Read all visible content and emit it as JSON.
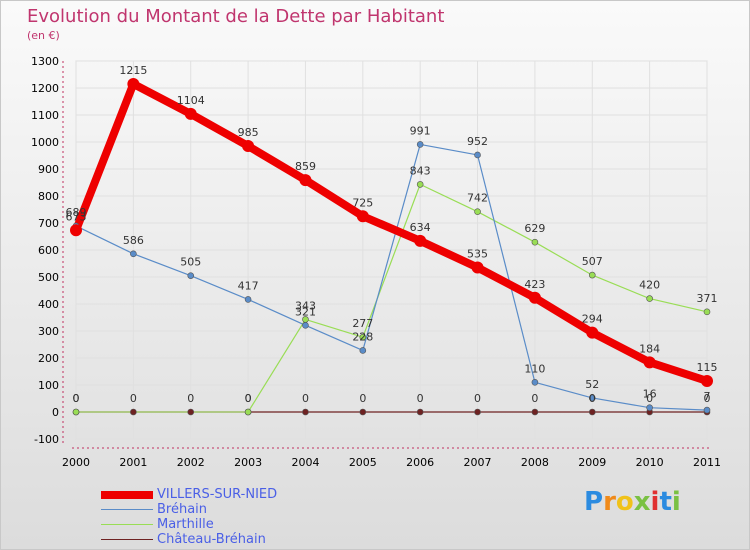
{
  "chart_data": {
    "type": "line",
    "title": "Evolution du Montant de la Dette par Habitant",
    "subtitle": "(en €)",
    "categories": [
      "2000",
      "2001",
      "2002",
      "2003",
      "2004",
      "2005",
      "2006",
      "2007",
      "2008",
      "2009",
      "2010",
      "2011"
    ],
    "ylim": [
      -100,
      1300
    ],
    "yticks": [
      -100,
      0,
      100,
      200,
      300,
      400,
      500,
      600,
      700,
      800,
      900,
      1000,
      1100,
      1200,
      1300
    ],
    "grid": true,
    "series": [
      {
        "name": "Château-Bréhain",
        "color": "#6e2222",
        "values": [
          0,
          0,
          0,
          0,
          0,
          0,
          0,
          0,
          0,
          0,
          0,
          0
        ],
        "labels": [
          "0",
          "0",
          "0",
          "0",
          "0",
          "0",
          "0",
          "0",
          "0",
          "0",
          "0",
          "0"
        ]
      },
      {
        "name": "Marthille",
        "color": "#99dd55",
        "values": [
          0,
          null,
          null,
          0,
          343,
          277,
          843,
          742,
          629,
          507,
          420,
          371
        ],
        "labels": [
          "0",
          "",
          "",
          "0",
          "343",
          "277",
          "843",
          "742",
          "629",
          "507",
          "420",
          "371"
        ]
      },
      {
        "name": "Bréhain",
        "color": "#5a8cc8",
        "values": [
          689,
          586,
          505,
          417,
          321,
          228,
          991,
          952,
          110,
          52,
          16,
          7
        ],
        "labels": [
          "689",
          "586",
          "505",
          "417",
          "321",
          "228",
          "991",
          "952",
          "110",
          "52",
          "16",
          "7"
        ]
      },
      {
        "name": "VILLERS-SUR-NIED",
        "color": "#ee0000",
        "values": [
          673,
          1215,
          1104,
          985,
          859,
          725,
          634,
          535,
          423,
          294,
          184,
          115
        ],
        "labels": [
          "673",
          "1215",
          "1104",
          "985",
          "859",
          "725",
          "634",
          "535",
          "423",
          "294",
          "184",
          "115"
        ]
      }
    ],
    "legend_order": [
      "VILLERS-SUR-NIED",
      "Bréhain",
      "Marthille",
      "Château-Bréhain"
    ]
  },
  "logo": {
    "text": "Proxiti",
    "letters": [
      "P",
      "r",
      "o",
      "x",
      "i",
      "t",
      "i"
    ],
    "colors": [
      "#2b8be0",
      "#f08a1a",
      "#f0c21a",
      "#7ac143",
      "#e03030",
      "#2b8be0",
      "#7ac143"
    ]
  }
}
